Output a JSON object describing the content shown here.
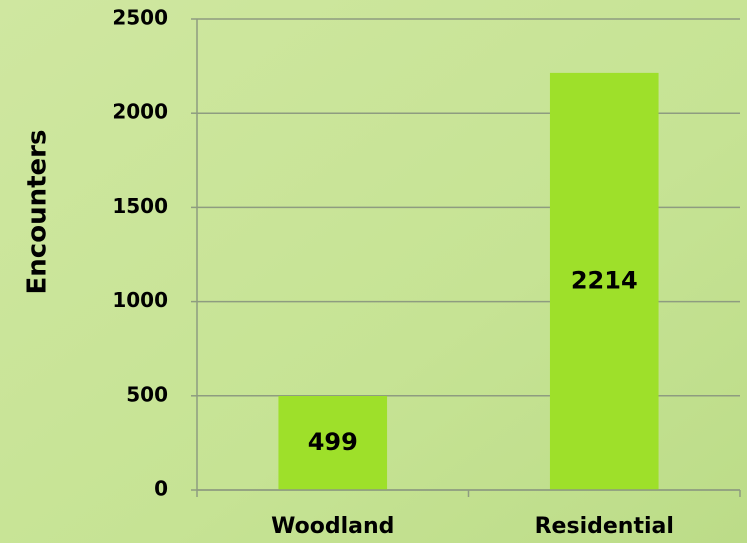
{
  "chart_data": {
    "type": "bar",
    "y_label": "Encounters",
    "categories": [
      "Woodland",
      "Residential"
    ],
    "values": [
      499,
      2214
    ],
    "color": "#9ee02a",
    "ylim": [
      0,
      2500
    ],
    "yticks": [
      0,
      500,
      1000,
      1500,
      2000,
      2500
    ],
    "grid": true
  }
}
